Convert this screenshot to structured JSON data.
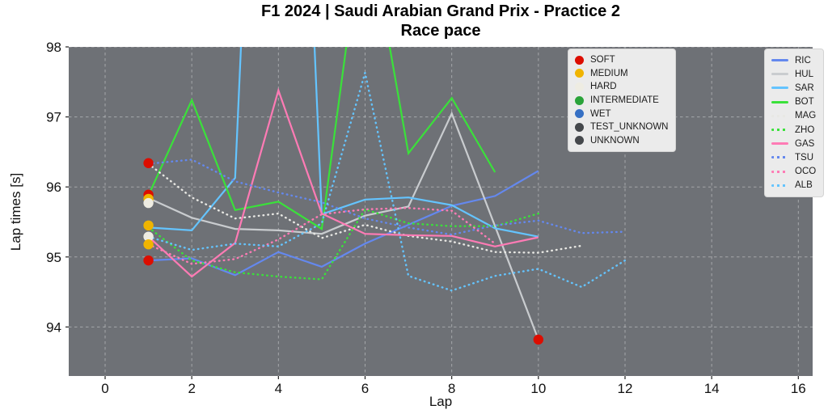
{
  "chart_data": {
    "type": "line",
    "title": "F1 2024 | Saudi Arabian Grand Prix - Practice 2",
    "subtitle": "Race pace",
    "xlabel": "Lap",
    "ylabel": "Lap times [s]",
    "xlim": [
      -0.84,
      16.33
    ],
    "ylim": [
      93.3,
      98.0
    ],
    "xticks": [
      0,
      2,
      4,
      6,
      8,
      10,
      12,
      14,
      16
    ],
    "yticks": [
      94,
      95,
      96,
      97,
      98
    ],
    "grid": true,
    "figure_bg": "#ffffff",
    "plot_bg": "#6e7176",
    "gridline_color": "#ffffff",
    "compound_colors": {
      "SOFT": "#dc0d00",
      "MEDIUM": "#f0b400",
      "HARD": "#eeece2",
      "INTERMEDIATE": "#2aa33a",
      "WET": "#3670c4",
      "TEST_UNKNOWN": "#45484c",
      "UNKNOWN": "#45484c"
    },
    "compound_legend": [
      {
        "label": "SOFT",
        "color": "#dc0d00"
      },
      {
        "label": "MEDIUM",
        "color": "#f0b400"
      },
      {
        "label": "HARD",
        "color": "#eeece2"
      },
      {
        "label": "INTERMEDIATE",
        "color": "#2aa33a"
      },
      {
        "label": "WET",
        "color": "#3670c4"
      },
      {
        "label": "TEST_UNKNOWN",
        "color": "#45484c"
      },
      {
        "label": "UNKNOWN",
        "color": "#45484c"
      }
    ],
    "driver_legend": [
      {
        "label": "RIC",
        "color": "#6488ee",
        "dash": "solid"
      },
      {
        "label": "HUL",
        "color": "#c9cccf",
        "dash": "solid"
      },
      {
        "label": "SAR",
        "color": "#64c4ff",
        "dash": "solid"
      },
      {
        "label": "BOT",
        "color": "#3ae13a",
        "dash": "solid"
      },
      {
        "label": "MAG",
        "color": "#e8e8e4",
        "dash": "dotted"
      },
      {
        "label": "ZHO",
        "color": "#3ae13a",
        "dash": "dotted"
      },
      {
        "label": "GAS",
        "color": "#ff7bb5",
        "dash": "solid"
      },
      {
        "label": "TSU",
        "color": "#6488ee",
        "dash": "dotted"
      },
      {
        "label": "OCO",
        "color": "#ff7bb5",
        "dash": "dotted"
      },
      {
        "label": "ALB",
        "color": "#64c4ff",
        "dash": "dotted"
      }
    ],
    "series": [
      {
        "name": "RIC",
        "color": "#6488ee",
        "dash": "solid",
        "x": [
          1,
          2,
          3,
          4,
          5,
          6,
          7,
          8,
          9,
          10
        ],
        "values": [
          94.95,
          94.98,
          94.74,
          95.07,
          94.86,
          95.19,
          95.46,
          95.73,
          95.87,
          96.23
        ]
      },
      {
        "name": "HUL",
        "color": "#c9cccf",
        "dash": "solid",
        "x": [
          1,
          2,
          3,
          4,
          5,
          6,
          7,
          8,
          9,
          10
        ],
        "values": [
          95.84,
          95.56,
          95.4,
          95.38,
          95.33,
          95.59,
          95.72,
          97.05,
          95.44,
          93.82
        ]
      },
      {
        "name": "SAR",
        "color": "#64c4ff",
        "dash": "solid",
        "x": [
          1,
          2,
          3,
          4,
          5,
          6,
          7,
          8,
          9,
          10
        ],
        "values": [
          95.42,
          95.38,
          96.13,
          110.0,
          95.61,
          95.82,
          95.85,
          95.74,
          95.41,
          95.29
        ]
      },
      {
        "name": "BOT",
        "color": "#3ae13a",
        "dash": "solid",
        "x": [
          1,
          2,
          3,
          4,
          5,
          6,
          7,
          8,
          9
        ],
        "values": [
          95.88,
          97.24,
          95.67,
          95.79,
          95.4,
          100.0,
          96.48,
          97.27,
          96.21
        ]
      },
      {
        "name": "MAG",
        "color": "#e8e8e4",
        "dash": "dotted",
        "x": [
          1,
          2,
          3,
          4,
          5,
          6,
          7,
          8,
          9,
          10,
          11
        ],
        "values": [
          96.33,
          95.85,
          95.55,
          95.62,
          95.27,
          95.46,
          95.3,
          95.22,
          95.07,
          95.06,
          95.16
        ]
      },
      {
        "name": "ZHO",
        "color": "#3ae13a",
        "dash": "dotted",
        "x": [
          1,
          2,
          3,
          4,
          5,
          6,
          7,
          8,
          9,
          10
        ],
        "values": [
          95.42,
          94.95,
          94.78,
          94.72,
          94.68,
          95.68,
          95.48,
          95.44,
          95.44,
          95.62
        ]
      },
      {
        "name": "GAS",
        "color": "#ff7bb5",
        "dash": "solid",
        "x": [
          1,
          2,
          3,
          4,
          5,
          6,
          7,
          8,
          9,
          10
        ],
        "values": [
          95.29,
          94.72,
          95.2,
          97.38,
          95.62,
          95.33,
          95.31,
          95.3,
          95.15,
          95.28
        ]
      },
      {
        "name": "TSU",
        "color": "#6488ee",
        "dash": "dotted",
        "x": [
          1,
          2,
          3,
          4,
          5,
          6,
          7,
          8,
          9,
          10,
          11,
          12
        ],
        "values": [
          96.33,
          96.39,
          96.08,
          95.92,
          95.78,
          95.55,
          95.42,
          95.32,
          95.45,
          95.52,
          95.34,
          95.36
        ]
      },
      {
        "name": "OCO",
        "color": "#ff7bb5",
        "dash": "dotted",
        "x": [
          1,
          2,
          3,
          4,
          5,
          6,
          7,
          8,
          9
        ],
        "values": [
          95.18,
          94.9,
          94.97,
          95.25,
          95.61,
          95.68,
          95.7,
          95.66,
          95.19
        ]
      },
      {
        "name": "ALB",
        "color": "#64c4ff",
        "dash": "dotted",
        "x": [
          1,
          2,
          3,
          4,
          5,
          6,
          7,
          8,
          9,
          10,
          11,
          12
        ],
        "values": [
          95.29,
          95.1,
          95.19,
          95.15,
          95.48,
          97.63,
          94.73,
          94.52,
          94.73,
          94.83,
          94.57,
          94.95
        ]
      }
    ],
    "markers": [
      {
        "x": 1,
        "y": 96.34,
        "compound": "SOFT"
      },
      {
        "x": 1,
        "y": 95.89,
        "compound": "SOFT"
      },
      {
        "x": 1,
        "y": 95.83,
        "compound": "MEDIUM"
      },
      {
        "x": 1,
        "y": 95.77,
        "compound": "HARD"
      },
      {
        "x": 1,
        "y": 95.45,
        "compound": "MEDIUM"
      },
      {
        "x": 1,
        "y": 95.29,
        "compound": "HARD"
      },
      {
        "x": 1,
        "y": 95.18,
        "compound": "MEDIUM"
      },
      {
        "x": 1,
        "y": 94.95,
        "compound": "SOFT"
      },
      {
        "x": 10,
        "y": 93.82,
        "compound": "SOFT"
      }
    ]
  }
}
